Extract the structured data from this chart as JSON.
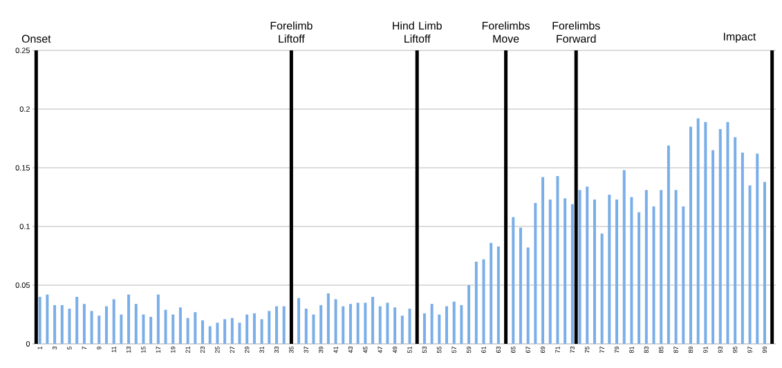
{
  "chart_data": {
    "type": "bar",
    "x": [
      1,
      2,
      3,
      4,
      5,
      6,
      7,
      8,
      9,
      10,
      11,
      12,
      13,
      14,
      15,
      16,
      17,
      18,
      19,
      20,
      21,
      22,
      23,
      24,
      25,
      26,
      27,
      28,
      29,
      30,
      31,
      32,
      33,
      34,
      35,
      36,
      37,
      38,
      39,
      40,
      41,
      42,
      43,
      44,
      45,
      46,
      47,
      48,
      49,
      50,
      51,
      52,
      53,
      54,
      55,
      56,
      57,
      58,
      59,
      60,
      61,
      62,
      63,
      64,
      65,
      66,
      67,
      68,
      69,
      70,
      71,
      72,
      73,
      74,
      75,
      76,
      77,
      78,
      79,
      80,
      81,
      82,
      83,
      84,
      85,
      86,
      87,
      88,
      89,
      90,
      91,
      92,
      93,
      94,
      95,
      96,
      97,
      98,
      99
    ],
    "values": [
      0.04,
      0.042,
      0.033,
      0.033,
      0.03,
      0.04,
      0.034,
      0.028,
      0.024,
      0.032,
      0.038,
      0.025,
      0.042,
      0.034,
      0.025,
      0.023,
      0.042,
      0.029,
      0.025,
      0.031,
      0.022,
      0.027,
      0.02,
      0.015,
      0.018,
      0.021,
      0.022,
      0.018,
      0.025,
      0.026,
      0.021,
      0.028,
      0.032,
      0.032,
      null,
      0.039,
      0.03,
      0.025,
      0.033,
      0.043,
      0.038,
      0.032,
      0.034,
      0.035,
      0.035,
      0.04,
      0.032,
      0.035,
      0.031,
      0.024,
      0.03,
      null,
      0.026,
      0.034,
      0.025,
      0.032,
      0.036,
      0.033,
      0.05,
      0.07,
      0.072,
      0.086,
      0.083,
      null,
      0.108,
      0.099,
      0.082,
      0.12,
      0.142,
      0.123,
      0.143,
      0.124,
      0.119,
      0.131,
      0.134,
      0.123,
      0.094,
      0.127,
      0.123,
      0.148,
      0.125,
      0.112,
      0.131,
      0.117,
      0.131,
      0.169,
      0.131,
      0.117,
      0.185,
      0.192,
      0.189,
      0.165,
      0.183,
      0.189,
      0.176,
      0.163,
      0.135,
      0.162,
      0.138
    ],
    "color": "#7aaee8",
    "xlim": [
      0,
      100.5
    ],
    "xticks": [
      1,
      3,
      5,
      7,
      9,
      11,
      13,
      15,
      17,
      19,
      21,
      23,
      25,
      27,
      29,
      31,
      33,
      35,
      37,
      39,
      41,
      43,
      45,
      47,
      49,
      51,
      53,
      55,
      57,
      59,
      61,
      63,
      65,
      67,
      69,
      71,
      73,
      75,
      77,
      79,
      81,
      83,
      85,
      87,
      89,
      91,
      93,
      95,
      97,
      99
    ],
    "ylim": [
      0,
      0.25
    ],
    "yticks": [
      0,
      0.05,
      0.1,
      0.15,
      0.2,
      0.25
    ],
    "grid": "y",
    "ref_lines": [
      {
        "axis": "x",
        "value": 0.5,
        "label": "Onset",
        "color": "#000000"
      },
      {
        "axis": "x",
        "value": 35,
        "label": "Forelimb Liftoff",
        "color": "#000000"
      },
      {
        "axis": "x",
        "value": 52,
        "label": "Hind Limb Liftoff",
        "color": "#000000"
      },
      {
        "axis": "x",
        "value": 64,
        "label": "Forelimbs Move",
        "color": "#000000"
      },
      {
        "axis": "x",
        "value": 73.5,
        "label": "Forelimbs Forward",
        "color": "#000000"
      },
      {
        "axis": "x",
        "value": 100,
        "label": "Impact",
        "color": "#000000"
      }
    ]
  }
}
